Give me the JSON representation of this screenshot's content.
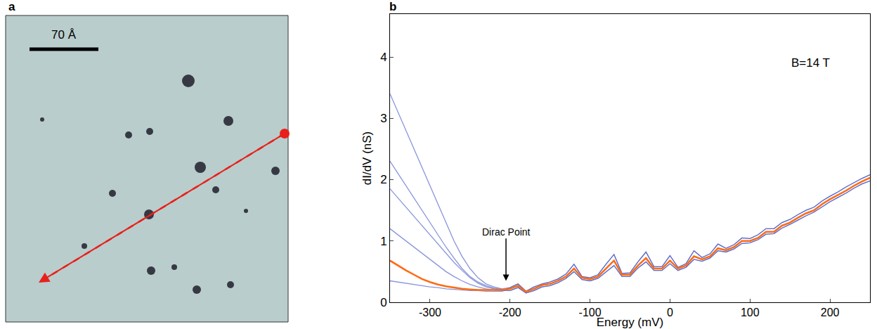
{
  "chart_data": {
    "type": "line",
    "panel": "b",
    "x_label": "Energy (mV)",
    "y_label": "dI/dV (nS)",
    "xlim": [
      -350,
      250
    ],
    "xticks": [
      -300,
      -200,
      -100,
      0,
      100,
      200
    ],
    "ylim": [
      0,
      4.7
    ],
    "yticks": [
      0,
      1,
      2,
      3,
      4
    ],
    "grid": false,
    "annotations": [
      {
        "text": "Dirac Point",
        "x": -205,
        "y": 0.35,
        "arrow_from_y": 1.15
      },
      {
        "text": "B=14 T",
        "x": 150,
        "y": 3.9
      }
    ],
    "x": [
      -350,
      -340,
      -330,
      -320,
      -310,
      -300,
      -290,
      -280,
      -270,
      -260,
      -250,
      -240,
      -230,
      -220,
      -210,
      -200,
      -190,
      -180,
      -170,
      -160,
      -150,
      -140,
      -130,
      -120,
      -110,
      -100,
      -90,
      -80,
      -70,
      -60,
      -50,
      -40,
      -30,
      -20,
      -10,
      0,
      10,
      20,
      30,
      40,
      50,
      60,
      70,
      80,
      90,
      100,
      110,
      120,
      130,
      140,
      150,
      160,
      170,
      180,
      190,
      200,
      210,
      220,
      230,
      240,
      250
    ],
    "series": [
      {
        "color": "#3a4fc4",
        "values": [
          3.4,
          3.1,
          2.8,
          2.5,
          2.2,
          1.9,
          1.6,
          1.3,
          1.0,
          0.75,
          0.55,
          0.4,
          0.3,
          0.25,
          0.22,
          0.24,
          0.3,
          0.18,
          0.25,
          0.3,
          0.33,
          0.38,
          0.46,
          0.62,
          0.42,
          0.4,
          0.45,
          0.62,
          0.78,
          0.47,
          0.48,
          0.66,
          0.82,
          0.58,
          0.58,
          0.76,
          0.57,
          0.63,
          0.84,
          0.73,
          0.79,
          0.95,
          0.88,
          0.94,
          1.05,
          1.04,
          1.1,
          1.2,
          1.2,
          1.3,
          1.35,
          1.43,
          1.5,
          1.55,
          1.65,
          1.73,
          1.8,
          1.88,
          1.95,
          2.02,
          2.08
        ]
      },
      {
        "color": "#3a4fc4",
        "values": [
          2.3,
          2.1,
          1.9,
          1.7,
          1.5,
          1.3,
          1.1,
          0.9,
          0.72,
          0.55,
          0.42,
          0.33,
          0.27,
          0.23,
          0.21,
          0.19,
          0.24,
          0.15,
          0.19,
          0.25,
          0.27,
          0.32,
          0.39,
          0.5,
          0.37,
          0.35,
          0.39,
          0.5,
          0.6,
          0.42,
          0.42,
          0.56,
          0.66,
          0.52,
          0.52,
          0.63,
          0.52,
          0.57,
          0.7,
          0.67,
          0.72,
          0.84,
          0.82,
          0.87,
          0.96,
          0.97,
          1.02,
          1.11,
          1.12,
          1.21,
          1.27,
          1.34,
          1.41,
          1.47,
          1.56,
          1.64,
          1.71,
          1.78,
          1.86,
          1.93,
          1.98
        ]
      },
      {
        "color": "#3a4fc4",
        "values": [
          1.85,
          1.7,
          1.55,
          1.4,
          1.25,
          1.1,
          0.95,
          0.8,
          0.65,
          0.52,
          0.4,
          0.31,
          0.25,
          0.22,
          0.2,
          0.24,
          0.3,
          0.18,
          0.25,
          0.3,
          0.33,
          0.38,
          0.46,
          0.62,
          0.42,
          0.4,
          0.45,
          0.62,
          0.78,
          0.47,
          0.48,
          0.66,
          0.82,
          0.58,
          0.58,
          0.76,
          0.57,
          0.63,
          0.84,
          0.73,
          0.79,
          0.95,
          0.88,
          0.94,
          1.05,
          1.04,
          1.1,
          1.2,
          1.2,
          1.3,
          1.35,
          1.43,
          1.5,
          1.55,
          1.65,
          1.73,
          1.8,
          1.88,
          1.95,
          2.02,
          2.08
        ]
      },
      {
        "color": "#3a4fc4",
        "values": [
          1.2,
          1.1,
          1.0,
          0.9,
          0.8,
          0.7,
          0.6,
          0.5,
          0.42,
          0.35,
          0.29,
          0.25,
          0.22,
          0.2,
          0.19,
          0.19,
          0.24,
          0.15,
          0.19,
          0.25,
          0.27,
          0.32,
          0.39,
          0.5,
          0.37,
          0.35,
          0.39,
          0.5,
          0.6,
          0.42,
          0.42,
          0.56,
          0.66,
          0.52,
          0.52,
          0.63,
          0.52,
          0.57,
          0.7,
          0.67,
          0.72,
          0.84,
          0.82,
          0.87,
          0.96,
          0.97,
          1.02,
          1.11,
          1.12,
          1.21,
          1.27,
          1.34,
          1.41,
          1.47,
          1.56,
          1.64,
          1.71,
          1.78,
          1.86,
          1.93,
          1.98
        ]
      },
      {
        "color": "#3a4fc4",
        "values": [
          0.35,
          0.33,
          0.31,
          0.29,
          0.27,
          0.25,
          0.24,
          0.22,
          0.21,
          0.2,
          0.19,
          0.19,
          0.18,
          0.18,
          0.18,
          0.22,
          0.27,
          0.17,
          0.22,
          0.28,
          0.3,
          0.35,
          0.42,
          0.55,
          0.4,
          0.38,
          0.42,
          0.55,
          0.68,
          0.45,
          0.45,
          0.6,
          0.72,
          0.55,
          0.55,
          0.68,
          0.55,
          0.6,
          0.75,
          0.7,
          0.75,
          0.88,
          0.85,
          0.9,
          1.0,
          1.0,
          1.05,
          1.15,
          1.15,
          1.25,
          1.3,
          1.38,
          1.45,
          1.5,
          1.6,
          1.68,
          1.75,
          1.82,
          1.9,
          1.97,
          2.03
        ]
      },
      {
        "color": "#ff6a13",
        "values": [
          0.68,
          0.6,
          0.52,
          0.45,
          0.38,
          0.33,
          0.29,
          0.26,
          0.24,
          0.22,
          0.21,
          0.2,
          0.2,
          0.2,
          0.2,
          0.22,
          0.27,
          0.17,
          0.22,
          0.28,
          0.3,
          0.35,
          0.42,
          0.55,
          0.4,
          0.38,
          0.42,
          0.55,
          0.68,
          0.45,
          0.45,
          0.6,
          0.72,
          0.55,
          0.55,
          0.68,
          0.55,
          0.6,
          0.75,
          0.7,
          0.75,
          0.88,
          0.85,
          0.9,
          1.0,
          1.0,
          1.05,
          1.15,
          1.15,
          1.25,
          1.3,
          1.38,
          1.45,
          1.5,
          1.6,
          1.68,
          1.75,
          1.82,
          1.9,
          1.97,
          2.03
        ]
      }
    ]
  },
  "image_panel": {
    "panel": "a",
    "scale_bar": "70 Å"
  }
}
